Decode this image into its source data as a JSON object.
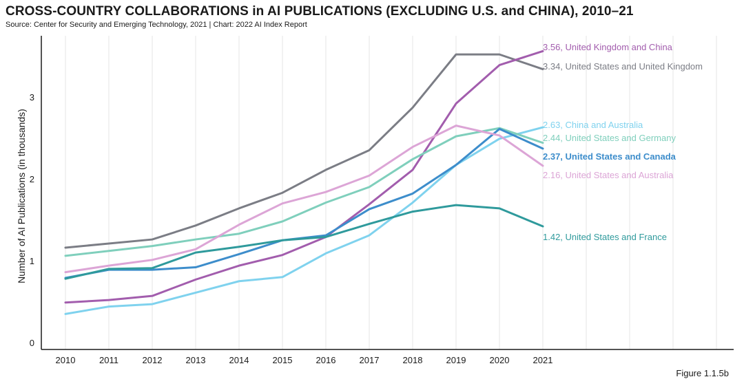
{
  "title": "CROSS-COUNTRY COLLABORATIONS in AI PUBLICATIONS (EXCLUDING U.S. and CHINA), 2010–21",
  "subtitle": "Source: Center for Security and Emerging Technology, 2021 | Chart: 2022 AI Index Report",
  "figure_label": "Figure 1.1.5b",
  "chart_data": {
    "type": "line",
    "title": "CROSS-COUNTRY COLLABORATIONS in AI PUBLICATIONS (EXCLUDING U.S. and CHINA), 2010–21",
    "xlabel": "",
    "ylabel": "Number of AI Publications (in thousands)",
    "x": [
      2010,
      2011,
      2012,
      2013,
      2014,
      2015,
      2016,
      2017,
      2018,
      2019,
      2020,
      2021
    ],
    "xlim": [
      2010,
      2025
    ],
    "ylim": [
      0,
      3.8
    ],
    "yticks": [
      0,
      1,
      2,
      3
    ],
    "grid": "vertical",
    "series": [
      {
        "name": "United States and United Kingdom",
        "color": "#7b7d85",
        "values": [
          1.16,
          1.21,
          1.26,
          1.43,
          1.64,
          1.83,
          2.11,
          2.35,
          2.87,
          3.52,
          3.52,
          3.34
        ],
        "end_label": "3.34, United States and United Kingdom"
      },
      {
        "name": "United Kingdom and China",
        "color": "#a25dad",
        "values": [
          0.49,
          0.52,
          0.57,
          0.77,
          0.94,
          1.07,
          1.29,
          1.69,
          2.11,
          2.92,
          3.39,
          3.56
        ],
        "end_label": "3.56, United Kingdom and China"
      },
      {
        "name": "China and Australia",
        "color": "#7fd2ee",
        "values": [
          0.35,
          0.44,
          0.47,
          0.61,
          0.75,
          0.8,
          1.09,
          1.31,
          1.71,
          2.17,
          2.49,
          2.63
        ],
        "end_label": "2.63, China and Australia"
      },
      {
        "name": "United States and Germany",
        "color": "#7fcfbc",
        "values": [
          1.06,
          1.12,
          1.18,
          1.26,
          1.33,
          1.48,
          1.71,
          1.9,
          2.24,
          2.52,
          2.62,
          2.44
        ],
        "end_label": "2.44, United States and Germany"
      },
      {
        "name": "United States and Canada",
        "color": "#3d8dcb",
        "values": [
          0.79,
          0.89,
          0.89,
          0.92,
          1.08,
          1.25,
          1.31,
          1.63,
          1.82,
          2.17,
          2.61,
          2.37
        ],
        "end_label": "2.37, United States and Canada"
      },
      {
        "name": "United States and Australia",
        "color": "#dca5d6",
        "values": [
          0.86,
          0.94,
          1.01,
          1.14,
          1.44,
          1.7,
          1.84,
          2.04,
          2.39,
          2.65,
          2.53,
          2.16
        ],
        "end_label": "2.16, United States and Australia"
      },
      {
        "name": "United States and France",
        "color": "#2f9a9c",
        "values": [
          0.78,
          0.9,
          0.91,
          1.1,
          1.17,
          1.25,
          1.29,
          1.45,
          1.6,
          1.68,
          1.64,
          1.42
        ],
        "end_label": "1.42, United States and France"
      }
    ]
  }
}
